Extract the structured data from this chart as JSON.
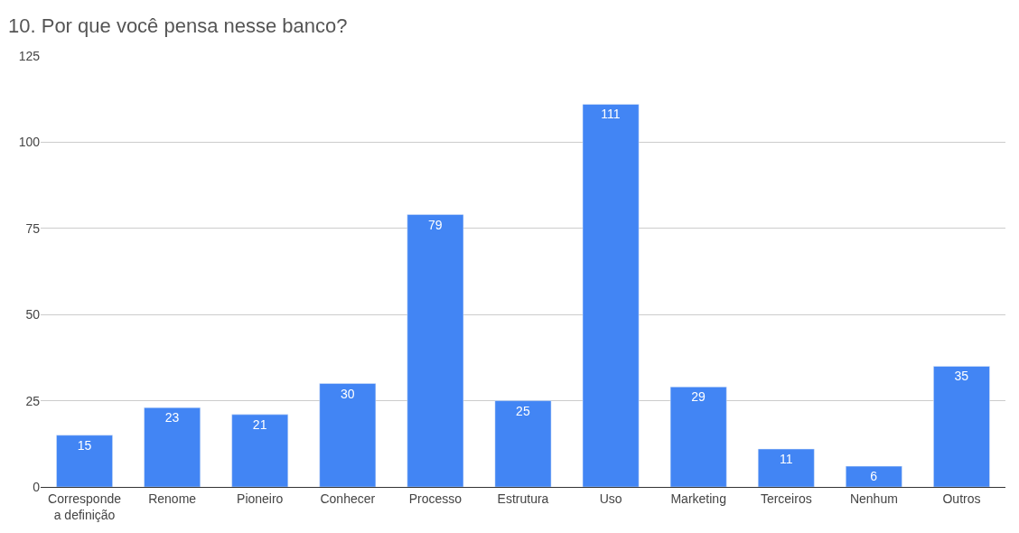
{
  "chart_data": {
    "type": "bar",
    "title": "10. Por que você pensa nesse banco?",
    "categories": [
      "Corresponde a definição",
      "Renome",
      "Pioneiro",
      "Conhecer",
      "Processo",
      "Estrutura",
      "Uso",
      "Marketing",
      "Terceiros",
      "Nenhum",
      "Outros"
    ],
    "values": [
      15,
      23,
      21,
      30,
      79,
      25,
      111,
      29,
      11,
      6,
      35
    ],
    "color": "#4285f4",
    "ylim": [
      0,
      125
    ],
    "yticks": [
      0,
      25,
      50,
      75,
      100,
      125
    ],
    "grid": "y",
    "data_labels": true
  }
}
